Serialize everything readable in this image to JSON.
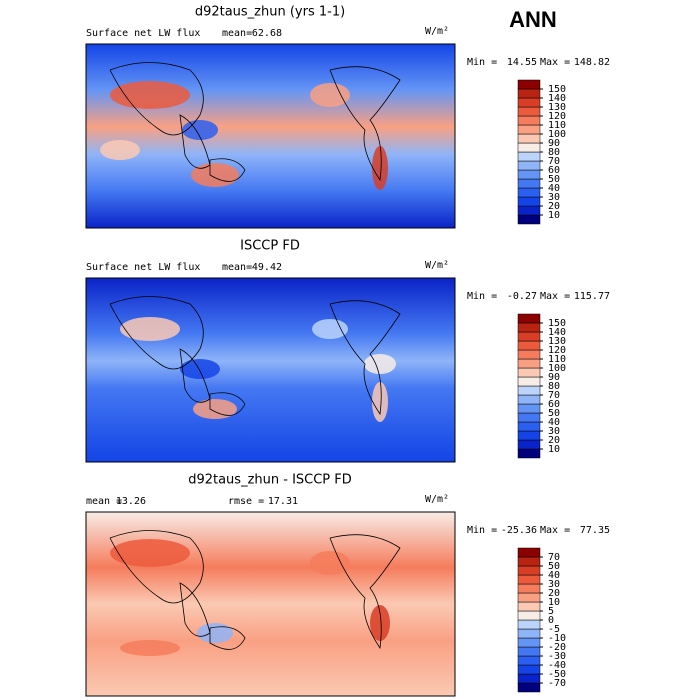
{
  "header": {
    "season": "ANN"
  },
  "panels": [
    {
      "title": "d92taus_zhun (yrs 1-1)",
      "variable": "Surface net LW flux",
      "stat1_label": "mean=",
      "stat1": 62.68,
      "units": "W/m²",
      "min_label": "Min =",
      "min": 14.55,
      "max_label": "Max =",
      "max": 148.82,
      "levels": [
        10,
        20,
        30,
        40,
        50,
        60,
        70,
        80,
        90,
        100,
        110,
        120,
        130,
        140,
        150
      ],
      "colors": [
        "#00007f",
        "#0a23c8",
        "#1444e6",
        "#2a5ff0",
        "#4478f2",
        "#6495f5",
        "#8fb4f8",
        "#bcd4fa",
        "#f7ece6",
        "#fbc9b3",
        "#f9a083",
        "#f57c5c",
        "#ec5a3c",
        "#d83d26",
        "#b82312",
        "#8b0000"
      ]
    },
    {
      "title": "ISCCP FD",
      "variable": "Surface net LW flux",
      "stat1_label": "mean=",
      "stat1": 49.42,
      "units": "W/m²",
      "min_label": "Min =",
      "min": -0.27,
      "max_label": "Max =",
      "max": 115.77,
      "levels": [
        10,
        20,
        30,
        40,
        50,
        60,
        70,
        80,
        90,
        100,
        110,
        120,
        130,
        140,
        150
      ],
      "colors": [
        "#00007f",
        "#0a23c8",
        "#1444e6",
        "#2a5ff0",
        "#4478f2",
        "#6495f5",
        "#8fb4f8",
        "#bcd4fa",
        "#f7ece6",
        "#fbc9b3",
        "#f9a083",
        "#f57c5c",
        "#ec5a3c",
        "#d83d26",
        "#b82312",
        "#8b0000"
      ]
    },
    {
      "title": "d92taus_zhun - ISCCP FD",
      "stat1_label": "mean =",
      "stat1": 13.26,
      "stat2_label": "rmse =",
      "stat2": 17.31,
      "units": "W/m²",
      "min_label": "Min =",
      "min": -25.36,
      "max_label": "Max =",
      "max": 77.35,
      "levels": [
        -70,
        -50,
        -40,
        -30,
        -20,
        -10,
        -5,
        0,
        5,
        10,
        20,
        30,
        40,
        50,
        70
      ],
      "colors": [
        "#00007f",
        "#0a23c8",
        "#1444e6",
        "#2a5ff0",
        "#4478f2",
        "#6495f5",
        "#8fb4f8",
        "#bcd4fa",
        "#f7ece6",
        "#fbc9b3",
        "#f9a083",
        "#f57c5c",
        "#ec5a3c",
        "#d83d26",
        "#b82312",
        "#8b0000"
      ]
    }
  ]
}
